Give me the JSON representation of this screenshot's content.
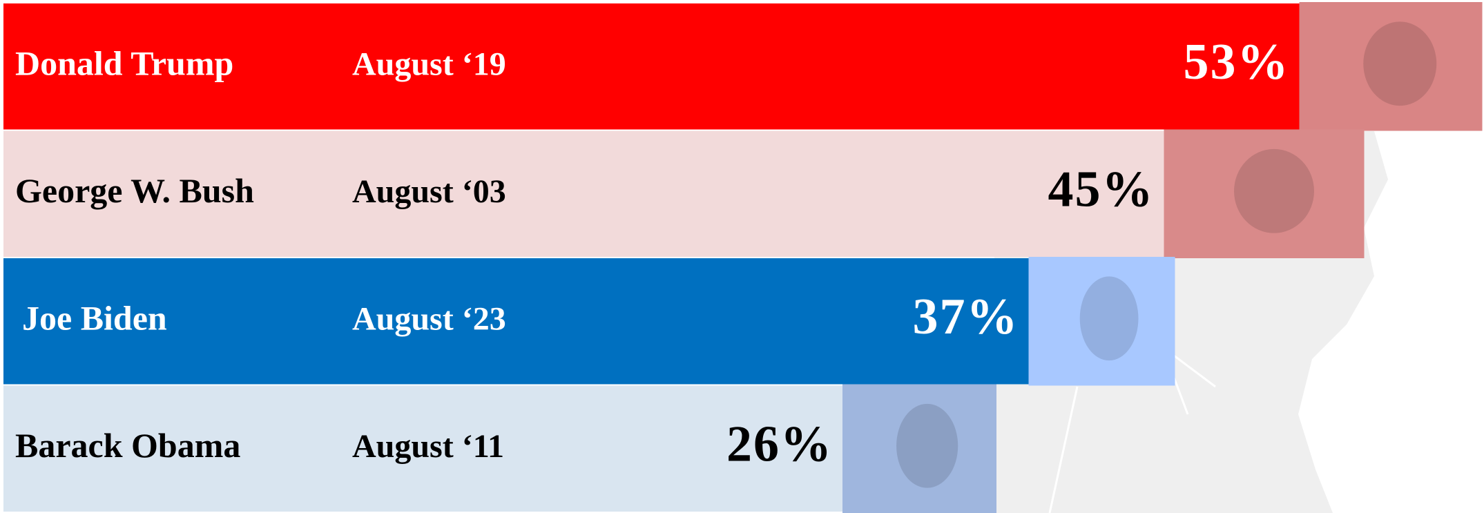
{
  "chart_data": {
    "type": "bar",
    "orientation": "horizontal",
    "categories": [
      "Donald Trump",
      "George W. Bush",
      "Joe Biden",
      "Barack Obama"
    ],
    "dates": [
      "August ‘19",
      "August ‘03",
      "August ‘23",
      "August  ‘11"
    ],
    "values": [
      53,
      45,
      37,
      26
    ],
    "value_labels": [
      "53%",
      "45%",
      "37%",
      "26%"
    ],
    "colors": [
      "#ff0000",
      "#f2dada",
      "#0070c0",
      "#d9e5f0"
    ]
  }
}
